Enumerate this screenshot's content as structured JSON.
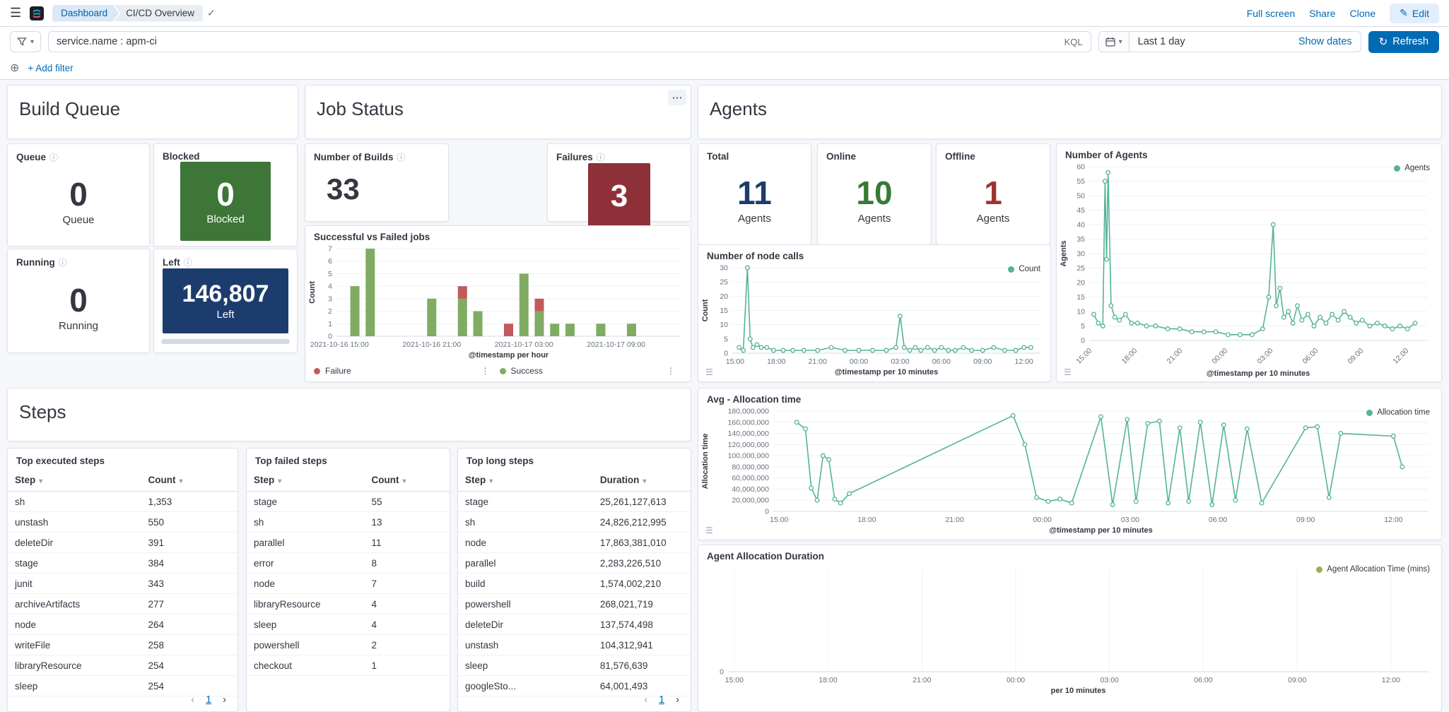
{
  "header": {
    "breadcrumbs": [
      "Dashboard",
      "CI/CD Overview"
    ],
    "actions": {
      "full_screen": "Full screen",
      "share": "Share",
      "clone": "Clone",
      "edit": "Edit"
    }
  },
  "query_bar": {
    "query": "service.name : apm-ci",
    "language_badge": "KQL",
    "time_range": "Last 1 day",
    "show_dates": "Show dates",
    "refresh": "Refresh",
    "add_filter": "+ Add filter"
  },
  "icons": {
    "menu": "☰",
    "check": "✓",
    "caret_down": "▾",
    "info": "ⓘ",
    "ellipsis": "⋯",
    "dots_vertical": "⋮",
    "plus_circled": "⊕",
    "refresh": "↻",
    "pencil": "✎",
    "legend_toggle": "☰",
    "chevron_left": "‹",
    "chevron_right": "›"
  },
  "colors": {
    "primary": "#006bb4",
    "navy": "#1d3c6e",
    "green_box": "#3e7637",
    "red_box": "#8e3038",
    "online_green": "#367a36",
    "offline_red": "#9e3533",
    "teal": "#54b399",
    "success": "#7fac62",
    "failure": "#c4595c",
    "olive": "#a6a853"
  },
  "panels": {
    "build_queue": {
      "title": "Build Queue",
      "queue": {
        "label": "Queue",
        "value": "0",
        "sublabel": "Queue"
      },
      "blocked": {
        "label": "Blocked",
        "value": "0",
        "sublabel": "Blocked"
      },
      "running": {
        "label": "Running",
        "value": "0",
        "sublabel": "Running"
      },
      "left": {
        "label": "Left",
        "value": "146,807",
        "sublabel": "Left"
      }
    },
    "job_status": {
      "title": "Job Status",
      "builds": {
        "label": "Number of Builds",
        "value": "33"
      },
      "failures": {
        "label": "Failures",
        "value": "3"
      }
    },
    "agents": {
      "title": "Agents",
      "total": {
        "label": "Total",
        "value": "11",
        "sublabel": "Agents"
      },
      "online": {
        "label": "Online",
        "value": "10",
        "sublabel": "Agents"
      },
      "offline": {
        "label": "Offline",
        "value": "1",
        "sublabel": "Agents"
      }
    },
    "steps": {
      "title": "Steps"
    }
  },
  "tables": {
    "executed": {
      "title": "Top executed steps",
      "columns": [
        "Step",
        "Count"
      ],
      "rows": [
        [
          "sh",
          "1,353"
        ],
        [
          "unstash",
          "550"
        ],
        [
          "deleteDir",
          "391"
        ],
        [
          "stage",
          "384"
        ],
        [
          "junit",
          "343"
        ],
        [
          "archiveArtifacts",
          "277"
        ],
        [
          "node",
          "264"
        ],
        [
          "writeFile",
          "258"
        ],
        [
          "libraryResource",
          "254"
        ],
        [
          "sleep",
          "254"
        ]
      ],
      "page": "1"
    },
    "failed": {
      "title": "Top failed steps",
      "columns": [
        "Step",
        "Count"
      ],
      "rows": [
        [
          "stage",
          "55"
        ],
        [
          "sh",
          "13"
        ],
        [
          "parallel",
          "11"
        ],
        [
          "error",
          "8"
        ],
        [
          "node",
          "7"
        ],
        [
          "libraryResource",
          "4"
        ],
        [
          "sleep",
          "4"
        ],
        [
          "powershell",
          "2"
        ],
        [
          "checkout",
          "1"
        ]
      ]
    },
    "long": {
      "title": "Top long steps",
      "columns": [
        "Step",
        "Duration"
      ],
      "rows": [
        [
          "stage",
          "25,261,127,613"
        ],
        [
          "sh",
          "24,826,212,995"
        ],
        [
          "node",
          "17,863,381,010"
        ],
        [
          "parallel",
          "2,283,226,510"
        ],
        [
          "build",
          "1,574,002,210"
        ],
        [
          "powershell",
          "268,021,719"
        ],
        [
          "deleteDir",
          "137,574,498"
        ],
        [
          "unstash",
          "104,312,941"
        ],
        [
          "sleep",
          "81,576,639"
        ],
        [
          "googleSto...",
          "64,001,493"
        ]
      ],
      "page": "1"
    }
  },
  "chart_data": {
    "time_ticks": [
      {
        "v": 15,
        "label": "15:00"
      },
      {
        "v": 18,
        "label": "18:00"
      },
      {
        "v": 21,
        "label": "21:00"
      },
      {
        "v": 24,
        "label": "00:00"
      },
      {
        "v": 27,
        "label": "03:00"
      },
      {
        "v": 30,
        "label": "06:00"
      },
      {
        "v": 33,
        "label": "09:00"
      },
      {
        "v": 36,
        "label": "12:00"
      }
    ],
    "jobs": {
      "type": "bar",
      "title": "Successful vs Failed jobs",
      "xlabel": "@timestamp per hour",
      "ylabel": "Count",
      "ylim": [
        0,
        7
      ],
      "yticks": [
        0,
        1,
        2,
        3,
        4,
        5,
        6,
        7
      ],
      "xlim": [
        14.8,
        37.2
      ],
      "xticks": [
        {
          "v": 15,
          "label": "2021-10-16 15:00"
        },
        {
          "v": 21,
          "label": "2021-10-16 21:00"
        },
        {
          "v": 27,
          "label": "2021-10-17 03:00"
        },
        {
          "v": 33,
          "label": "2021-10-17 09:00"
        }
      ],
      "series": [
        {
          "name": "Failure",
          "color": "#c4595c"
        },
        {
          "name": "Success",
          "color": "#7fac62"
        }
      ],
      "bars": [
        {
          "x": 16,
          "success": 4,
          "failure": 0
        },
        {
          "x": 17,
          "success": 7,
          "failure": 0
        },
        {
          "x": 21,
          "success": 3,
          "failure": 0
        },
        {
          "x": 23,
          "success": 3,
          "failure": 1
        },
        {
          "x": 24,
          "success": 2,
          "failure": 0
        },
        {
          "x": 26,
          "success": 0,
          "failure": 1
        },
        {
          "x": 27,
          "success": 5,
          "failure": 0
        },
        {
          "x": 28,
          "success": 2,
          "failure": 1
        },
        {
          "x": 29,
          "success": 1,
          "failure": 0
        },
        {
          "x": 30,
          "success": 1,
          "failure": 0
        },
        {
          "x": 32,
          "success": 1,
          "failure": 0
        },
        {
          "x": 34,
          "success": 1,
          "failure": 0
        }
      ]
    },
    "node_calls": {
      "type": "line",
      "title": "Number of node calls",
      "legend": "Count",
      "color": "#54b399",
      "xlabel": "@timestamp per 10 minutes",
      "ylabel": "Count",
      "ylim": [
        0,
        30
      ],
      "yticks": [
        0,
        5,
        10,
        15,
        20,
        25,
        30
      ],
      "xlim": [
        14.8,
        37.2
      ],
      "points": [
        [
          15.3,
          2
        ],
        [
          15.6,
          1
        ],
        [
          15.9,
          30
        ],
        [
          16.1,
          5
        ],
        [
          16.3,
          2
        ],
        [
          16.6,
          3
        ],
        [
          16.9,
          2
        ],
        [
          17.3,
          2
        ],
        [
          17.8,
          1
        ],
        [
          18.5,
          1
        ],
        [
          19.2,
          1
        ],
        [
          20,
          1
        ],
        [
          21,
          1
        ],
        [
          22,
          2
        ],
        [
          23,
          1
        ],
        [
          24,
          1
        ],
        [
          25,
          1
        ],
        [
          26,
          1
        ],
        [
          26.7,
          2
        ],
        [
          27,
          13
        ],
        [
          27.3,
          2
        ],
        [
          27.7,
          1
        ],
        [
          28.1,
          2
        ],
        [
          28.5,
          1
        ],
        [
          29,
          2
        ],
        [
          29.5,
          1
        ],
        [
          30,
          2
        ],
        [
          30.5,
          1
        ],
        [
          31,
          1
        ],
        [
          31.6,
          2
        ],
        [
          32.2,
          1
        ],
        [
          33,
          1
        ],
        [
          33.8,
          2
        ],
        [
          34.6,
          1
        ],
        [
          35.4,
          1
        ],
        [
          36,
          2
        ],
        [
          36.5,
          2
        ]
      ]
    },
    "agents": {
      "type": "line",
      "title": "Number of Agents",
      "legend": "Agents",
      "color": "#54b399",
      "xlabel": "@timestamp per 10 minutes",
      "ylabel": "Agents",
      "ylim": [
        0,
        60
      ],
      "yticks": [
        0,
        5,
        10,
        15,
        20,
        25,
        30,
        35,
        40,
        45,
        50,
        55,
        60
      ],
      "xlim": [
        14.8,
        37.2
      ],
      "rotate_x_labels": true,
      "points": [
        [
          15.1,
          9
        ],
        [
          15.4,
          6
        ],
        [
          15.7,
          5
        ],
        [
          15.85,
          55
        ],
        [
          15.95,
          28
        ],
        [
          16.05,
          58
        ],
        [
          16.25,
          12
        ],
        [
          16.5,
          8
        ],
        [
          16.8,
          7
        ],
        [
          17.2,
          9
        ],
        [
          17.6,
          6
        ],
        [
          18,
          6
        ],
        [
          18.6,
          5
        ],
        [
          19.2,
          5
        ],
        [
          20,
          4
        ],
        [
          20.8,
          4
        ],
        [
          21.6,
          3
        ],
        [
          22.4,
          3
        ],
        [
          23.2,
          3
        ],
        [
          24,
          2
        ],
        [
          24.8,
          2
        ],
        [
          25.6,
          2
        ],
        [
          26.3,
          4
        ],
        [
          26.7,
          15
        ],
        [
          27,
          40
        ],
        [
          27.2,
          12
        ],
        [
          27.45,
          18
        ],
        [
          27.7,
          8
        ],
        [
          28,
          10
        ],
        [
          28.3,
          6
        ],
        [
          28.6,
          12
        ],
        [
          28.9,
          7
        ],
        [
          29.3,
          9
        ],
        [
          29.7,
          5
        ],
        [
          30.1,
          8
        ],
        [
          30.5,
          6
        ],
        [
          30.9,
          9
        ],
        [
          31.3,
          7
        ],
        [
          31.7,
          10
        ],
        [
          32.1,
          8
        ],
        [
          32.5,
          6
        ],
        [
          32.9,
          7
        ],
        [
          33.4,
          5
        ],
        [
          33.9,
          6
        ],
        [
          34.4,
          5
        ],
        [
          34.9,
          4
        ],
        [
          35.4,
          5
        ],
        [
          35.9,
          4
        ],
        [
          36.4,
          6
        ]
      ]
    },
    "allocation": {
      "type": "line",
      "title": "Avg - Allocation time",
      "legend": "Allocation time",
      "color": "#54b399",
      "xlabel": "@timestamp per 10 minutes",
      "ylabel": "Allocation time",
      "ylim": [
        0,
        180000000
      ],
      "yticks": [
        0,
        20000000,
        40000000,
        60000000,
        80000000,
        100000000,
        120000000,
        140000000,
        160000000,
        180000000
      ],
      "xlim": [
        14.8,
        37.2
      ],
      "points": [
        [
          15.6,
          160000000
        ],
        [
          15.9,
          148000000
        ],
        [
          16.1,
          42000000
        ],
        [
          16.3,
          20000000
        ],
        [
          16.5,
          100000000
        ],
        [
          16.7,
          93000000
        ],
        [
          16.9,
          22000000
        ],
        [
          17.1,
          15000000
        ],
        [
          17.4,
          32000000
        ],
        [
          23,
          172000000
        ],
        [
          23.4,
          120000000
        ],
        [
          23.8,
          25000000
        ],
        [
          24.2,
          18000000
        ],
        [
          24.6,
          22000000
        ],
        [
          25,
          15000000
        ],
        [
          26,
          170000000
        ],
        [
          26.4,
          12000000
        ],
        [
          26.9,
          165000000
        ],
        [
          27.2,
          18000000
        ],
        [
          27.6,
          158000000
        ],
        [
          28,
          162000000
        ],
        [
          28.3,
          15000000
        ],
        [
          28.7,
          150000000
        ],
        [
          29,
          18000000
        ],
        [
          29.4,
          160000000
        ],
        [
          29.8,
          12000000
        ],
        [
          30.2,
          155000000
        ],
        [
          30.6,
          20000000
        ],
        [
          31,
          148000000
        ],
        [
          31.5,
          15000000
        ],
        [
          33,
          150000000
        ],
        [
          33.4,
          152000000
        ],
        [
          33.8,
          25000000
        ],
        [
          34.2,
          140000000
        ],
        [
          36,
          135000000
        ],
        [
          36.3,
          80000000
        ]
      ]
    },
    "duration": {
      "type": "line",
      "title": "Agent Allocation Duration",
      "legend": "Agent Allocation Time (mins)",
      "color": "#a6a853",
      "xlabel": "per 10 minutes",
      "ylim": [
        0,
        1
      ],
      "yticks": [
        0
      ],
      "xlim": [
        14.8,
        37.2
      ],
      "vgrid": true,
      "points": []
    }
  }
}
